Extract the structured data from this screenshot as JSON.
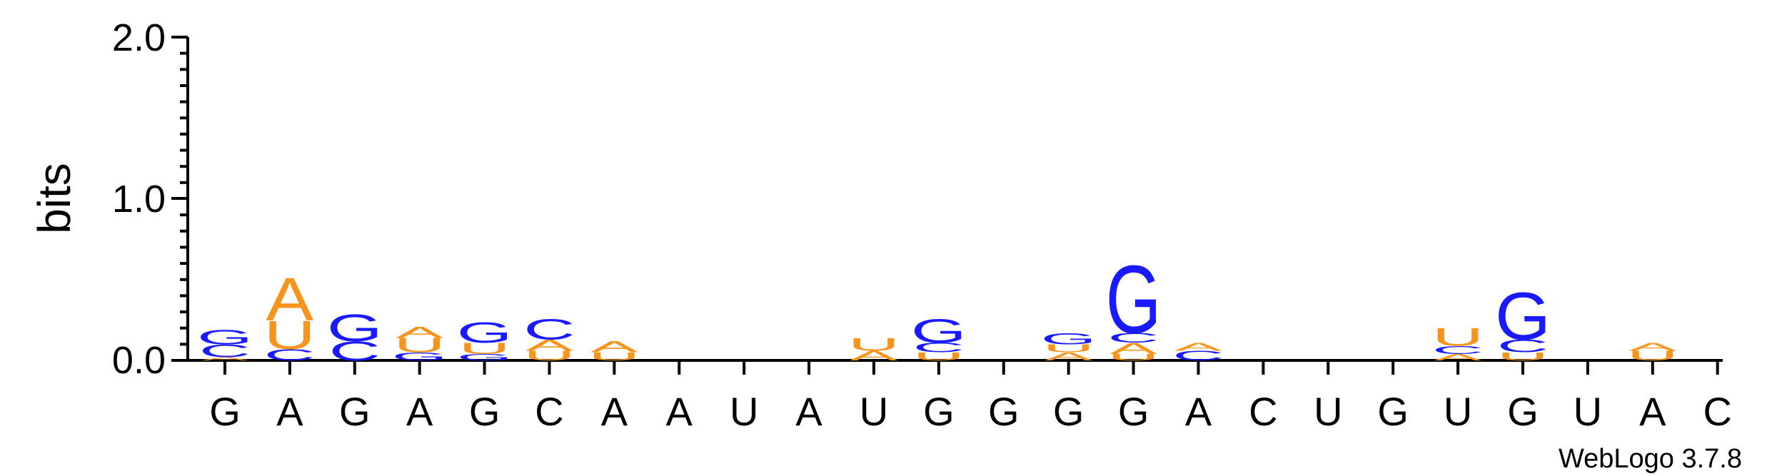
{
  "chart_data": {
    "type": "sequence-logo",
    "ylabel": "bits",
    "ylim": [
      0,
      2.0
    ],
    "yticks": [
      "0.0",
      "1.0",
      "2.0"
    ],
    "sequence": [
      "G",
      "A",
      "G",
      "A",
      "G",
      "C",
      "A",
      "A",
      "U",
      "A",
      "U",
      "G",
      "G",
      "G",
      "G",
      "A",
      "C",
      "U",
      "G",
      "U",
      "G",
      "U",
      "A",
      "C"
    ],
    "colors": {
      "A": "#f7941d",
      "U": "#f7941d",
      "G": "#1a1aff",
      "C": "#1a1aff"
    },
    "positions": [
      {
        "stack": [
          [
            "A",
            0.02
          ],
          [
            "C",
            0.08
          ],
          [
            "G",
            0.09
          ]
        ]
      },
      {
        "stack": [
          [
            "C",
            0.07
          ],
          [
            "U",
            0.18
          ],
          [
            "A",
            0.27
          ]
        ]
      },
      {
        "stack": [
          [
            "C",
            0.12
          ],
          [
            "G",
            0.17
          ]
        ]
      },
      {
        "stack": [
          [
            "G",
            0.05
          ],
          [
            "U",
            0.09
          ],
          [
            "A",
            0.07
          ]
        ]
      },
      {
        "stack": [
          [
            "G",
            0.04
          ],
          [
            "U",
            0.07
          ],
          [
            "G",
            0.13
          ]
        ]
      },
      {
        "stack": [
          [
            "U",
            0.06
          ],
          [
            "A",
            0.07
          ],
          [
            "C",
            0.13
          ]
        ]
      },
      {
        "stack": [
          [
            "U",
            0.05
          ],
          [
            "A",
            0.07
          ]
        ]
      },
      {
        "stack": []
      },
      {
        "stack": []
      },
      {
        "stack": []
      },
      {
        "stack": [
          [
            "A",
            0.06
          ],
          [
            "U",
            0.08
          ]
        ]
      },
      {
        "stack": [
          [
            "U",
            0.05
          ],
          [
            "C",
            0.06
          ],
          [
            "G",
            0.15
          ]
        ]
      },
      {
        "stack": []
      },
      {
        "stack": [
          [
            "A",
            0.05
          ],
          [
            "U",
            0.05
          ],
          [
            "G",
            0.07
          ]
        ]
      },
      {
        "stack": [
          [
            "U",
            0.04
          ],
          [
            "A",
            0.07
          ],
          [
            "C",
            0.06
          ],
          [
            "G",
            0.43
          ]
        ]
      },
      {
        "stack": [
          [
            "C",
            0.06
          ],
          [
            "A",
            0.05
          ]
        ]
      },
      {
        "stack": []
      },
      {
        "stack": []
      },
      {
        "stack": []
      },
      {
        "stack": [
          [
            "A",
            0.04
          ],
          [
            "C",
            0.05
          ],
          [
            "U",
            0.11
          ]
        ]
      },
      {
        "stack": [
          [
            "U",
            0.05
          ],
          [
            "C",
            0.08
          ],
          [
            "G",
            0.3
          ]
        ]
      },
      {
        "stack": []
      },
      {
        "stack": [
          [
            "U",
            0.06
          ],
          [
            "A",
            0.05
          ]
        ]
      },
      {
        "stack": []
      }
    ]
  },
  "credit": "WebLogo 3.7.8"
}
